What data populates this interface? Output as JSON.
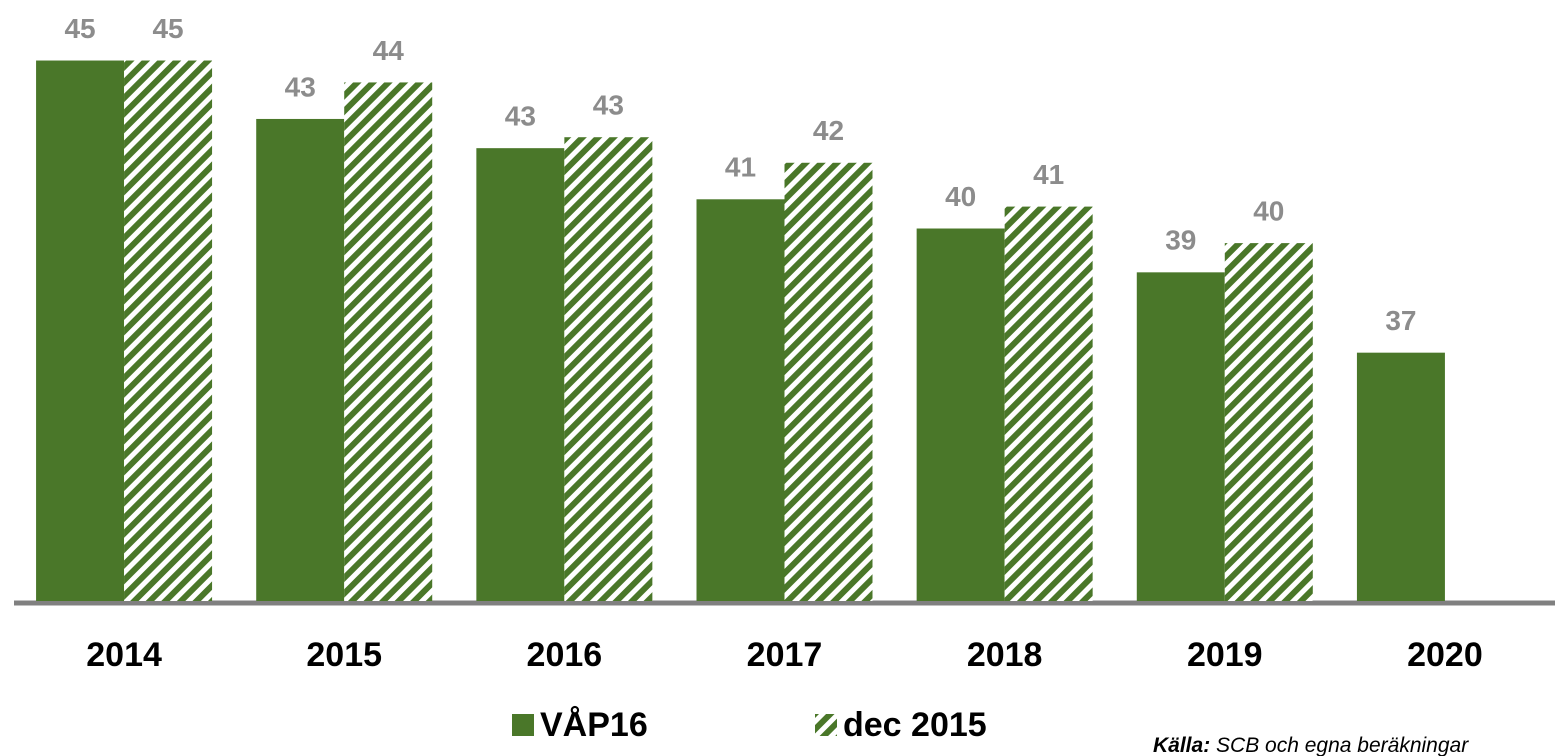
{
  "chart_data": {
    "type": "bar",
    "categories": [
      "2014",
      "2015",
      "2016",
      "2017",
      "2018",
      "2019",
      "2020"
    ],
    "series": [
      {
        "name": "VÅP16",
        "color": "#4a7729",
        "values": [
          45.0,
          43.4,
          42.6,
          41.2,
          40.4,
          39.2,
          37.0
        ],
        "value_labels": [
          "45",
          "43",
          "43",
          "41",
          "40",
          "39",
          "37"
        ]
      },
      {
        "name": "dec 2015",
        "color": "#4a7729",
        "hatch": true,
        "values": [
          45.0,
          44.4,
          42.9,
          42.2,
          41.0,
          40.0,
          null
        ],
        "value_labels": [
          "45",
          "44",
          "43",
          "42",
          "41",
          "40",
          null
        ]
      }
    ],
    "ylim": [
      30.2,
      46
    ],
    "source_label": "Källa:",
    "source": "SCB och egna beräkningar"
  }
}
